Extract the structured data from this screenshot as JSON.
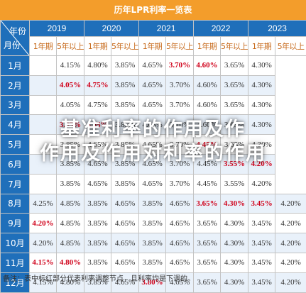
{
  "title": "历年LPR利率一览表",
  "corner": {
    "year": "年份",
    "month": "月份"
  },
  "years": [
    "2019",
    "2020",
    "2021",
    "2022",
    "2023"
  ],
  "terms": [
    "1年期",
    "5年以上"
  ],
  "rows": [
    {
      "month": "1月",
      "cells": [
        [
          "",
          ""
        ],
        [
          "4.15%",
          ""
        ],
        [
          "4.80%",
          ""
        ],
        [
          "3.85%",
          ""
        ],
        [
          "4.65%",
          ""
        ],
        [
          "3.70%",
          "r"
        ],
        [
          "4.60%",
          "r"
        ],
        [
          "3.65%",
          ""
        ],
        [
          "4.30%",
          ""
        ]
      ]
    },
    {
      "month": "2月",
      "cells": [
        [
          "",
          ""
        ],
        [
          "4.05%",
          "r"
        ],
        [
          "4.75%",
          "r"
        ],
        [
          "3.85%",
          ""
        ],
        [
          "4.65%",
          ""
        ],
        [
          "3.70%",
          ""
        ],
        [
          "4.60%",
          ""
        ],
        [
          "3.65%",
          ""
        ],
        [
          "4.30%",
          ""
        ]
      ]
    },
    {
      "month": "3月",
      "cells": [
        [
          "",
          ""
        ],
        [
          "4.05%",
          ""
        ],
        [
          "4.75%",
          ""
        ],
        [
          "3.85%",
          ""
        ],
        [
          "4.65%",
          ""
        ],
        [
          "3.70%",
          ""
        ],
        [
          "4.60%",
          ""
        ],
        [
          "3.65%",
          ""
        ],
        [
          "4.30%",
          ""
        ]
      ]
    },
    {
      "month": "4月",
      "cells": [
        [
          "",
          ""
        ],
        [
          "3.85%",
          "r"
        ],
        [
          "4.65%",
          "r"
        ],
        [
          "3.85%",
          ""
        ],
        [
          "4.65%",
          ""
        ],
        [
          "3.70%",
          ""
        ],
        [
          "4.60%",
          ""
        ],
        [
          "3.65%",
          ""
        ],
        [
          "4.30%",
          ""
        ]
      ]
    },
    {
      "month": "5月",
      "cells": [
        [
          "",
          ""
        ],
        [
          "3.85%",
          ""
        ],
        [
          "4.65%",
          ""
        ],
        [
          "3.85%",
          ""
        ],
        [
          "4.65%",
          ""
        ],
        [
          "3.70%",
          ""
        ],
        [
          "4.45%",
          "r"
        ],
        [
          "3.65%",
          ""
        ],
        [
          "4.30%",
          ""
        ]
      ]
    },
    {
      "month": "6月",
      "cells": [
        [
          "",
          ""
        ],
        [
          "3.85%",
          ""
        ],
        [
          "4.65%",
          ""
        ],
        [
          "3.85%",
          ""
        ],
        [
          "4.65%",
          ""
        ],
        [
          "3.70%",
          ""
        ],
        [
          "4.45%",
          ""
        ],
        [
          "3.55%",
          "r"
        ],
        [
          "4.20%",
          "r"
        ]
      ]
    },
    {
      "month": "7月",
      "cells": [
        [
          "",
          ""
        ],
        [
          "3.85%",
          ""
        ],
        [
          "4.65%",
          ""
        ],
        [
          "3.85%",
          ""
        ],
        [
          "4.65%",
          ""
        ],
        [
          "3.70%",
          ""
        ],
        [
          "4.45%",
          ""
        ],
        [
          "3.55%",
          ""
        ],
        [
          "4.20%",
          ""
        ]
      ]
    },
    {
      "month": "8月",
      "cells": [
        [
          "4.25%",
          ""
        ],
        [
          "4.85%",
          ""
        ],
        [
          "3.85%",
          ""
        ],
        [
          "4.65%",
          ""
        ],
        [
          "3.85%",
          ""
        ],
        [
          "4.65%",
          ""
        ],
        [
          "3.65%",
          "r"
        ],
        [
          "4.30%",
          "r"
        ],
        [
          "3.45%",
          "r"
        ],
        [
          "4.20%",
          ""
        ]
      ]
    },
    {
      "month": "9月",
      "cells": [
        [
          "4.20%",
          "r"
        ],
        [
          "4.85%",
          ""
        ],
        [
          "3.85%",
          ""
        ],
        [
          "4.65%",
          ""
        ],
        [
          "3.85%",
          ""
        ],
        [
          "4.65%",
          ""
        ],
        [
          "3.65%",
          ""
        ],
        [
          "4.30%",
          ""
        ],
        [
          "3.45%",
          ""
        ],
        [
          "4.20%",
          ""
        ]
      ]
    },
    {
      "month": "10月",
      "cells": [
        [
          "4.20%",
          ""
        ],
        [
          "4.85%",
          ""
        ],
        [
          "3.85%",
          ""
        ],
        [
          "4.65%",
          ""
        ],
        [
          "3.85%",
          ""
        ],
        [
          "4.65%",
          ""
        ],
        [
          "3.65%",
          ""
        ],
        [
          "4.30%",
          ""
        ],
        [
          "3.45%",
          ""
        ],
        [
          "4.20%",
          ""
        ]
      ]
    },
    {
      "month": "11月",
      "cells": [
        [
          "4.15%",
          "r"
        ],
        [
          "4.80%",
          "r"
        ],
        [
          "3.85%",
          ""
        ],
        [
          "4.65%",
          ""
        ],
        [
          "3.85%",
          ""
        ],
        [
          "4.65%",
          ""
        ],
        [
          "3.65%",
          ""
        ],
        [
          "4.30%",
          ""
        ],
        [
          "3.45%",
          ""
        ],
        [
          "4.20%",
          ""
        ]
      ]
    },
    {
      "month": "12月",
      "cells": [
        [
          "4.15%",
          ""
        ],
        [
          "4.80%",
          ""
        ],
        [
          "3.85%",
          ""
        ],
        [
          "4.65%",
          ""
        ],
        [
          "3.80%",
          "r"
        ],
        [
          "4.65%",
          ""
        ],
        [
          "3.65%",
          ""
        ],
        [
          "4.30%",
          ""
        ],
        [
          "3.45%",
          ""
        ],
        [
          "4.20%",
          ""
        ]
      ]
    }
  ],
  "note": "备注：表中标红部分代表利率调整节点，且利率均是下调的。",
  "overlay": {
    "line1": "基准利率的作用及作",
    "line2": "作用及作用对利率的作用"
  }
}
